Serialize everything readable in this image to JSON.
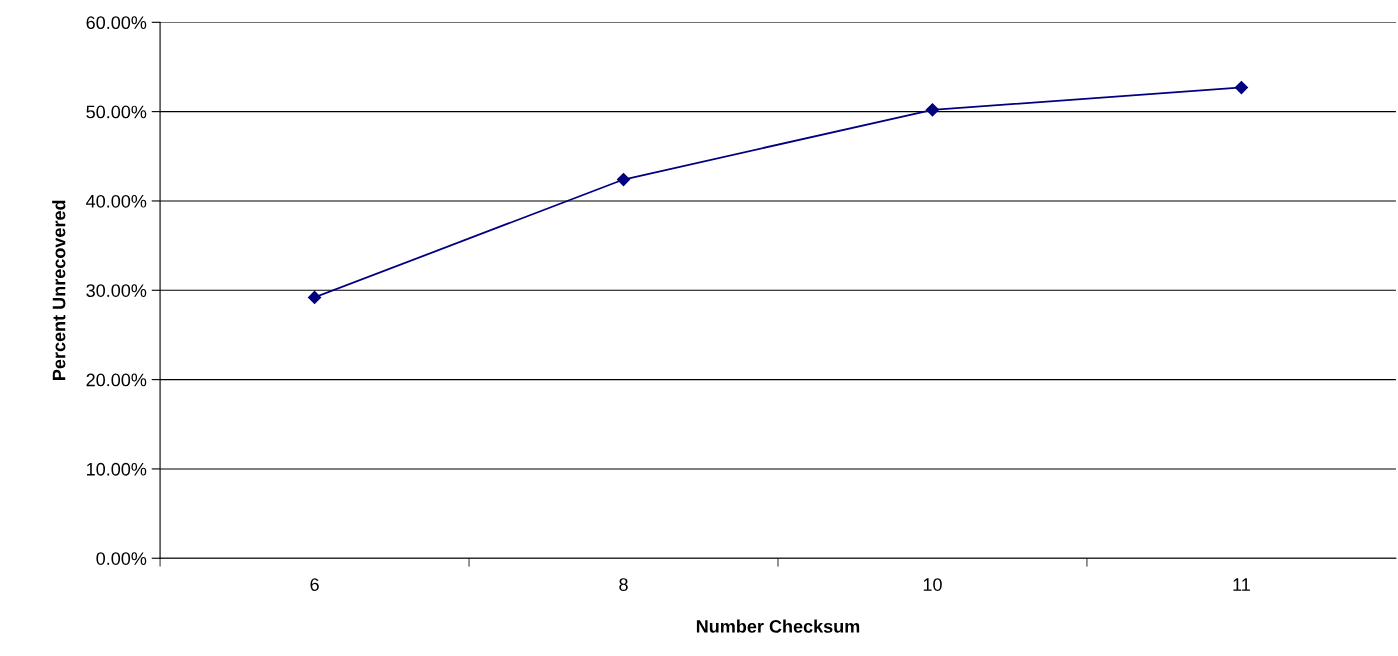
{
  "chart_data": {
    "type": "line",
    "xlabel": "Number Checksum",
    "ylabel": "Percent Unrecovered",
    "categories": [
      "6",
      "8",
      "10",
      "11"
    ],
    "series": [
      {
        "color": "#000080",
        "values": [
          29.2,
          42.4,
          50.2,
          52.7
        ]
      }
    ],
    "ylim": [
      0,
      60
    ],
    "yticks": [
      {
        "value": 0,
        "label": "0.00%"
      },
      {
        "value": 10,
        "label": "10.00%"
      },
      {
        "value": 20,
        "label": "20.00%"
      },
      {
        "value": 30,
        "label": "30.00%"
      },
      {
        "value": 40,
        "label": "40.00%"
      },
      {
        "value": 50,
        "label": "50.00%"
      },
      {
        "value": 60,
        "label": "60.00%"
      }
    ],
    "grid": "y",
    "marker": "diamond",
    "line_style": "solid"
  }
}
